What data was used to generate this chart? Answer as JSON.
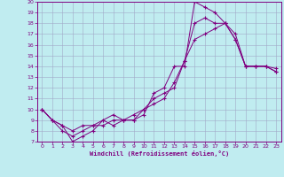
{
  "xlabel": "Windchill (Refroidissement éolien,°C)",
  "bg_color": "#c0ecf0",
  "line_color": "#800080",
  "grid_color": "#a0a8c8",
  "xlim": [
    -0.5,
    23.5
  ],
  "ylim": [
    7,
    20
  ],
  "xticks": [
    0,
    1,
    2,
    3,
    4,
    5,
    6,
    7,
    8,
    9,
    10,
    11,
    12,
    13,
    14,
    15,
    16,
    17,
    18,
    19,
    20,
    21,
    22,
    23
  ],
  "yticks": [
    7,
    8,
    9,
    10,
    11,
    12,
    13,
    14,
    15,
    16,
    17,
    18,
    19,
    20
  ],
  "line1_x": [
    0,
    1,
    2,
    3,
    4,
    5,
    6,
    7,
    8,
    9,
    10,
    11,
    12,
    13,
    14,
    15,
    16,
    17,
    18,
    19,
    20,
    21,
    22,
    23
  ],
  "line1_y": [
    10,
    9,
    8.5,
    7,
    7.5,
    8,
    9,
    9.5,
    9,
    9,
    9.5,
    11.5,
    12,
    14,
    14,
    20,
    19.5,
    19,
    18,
    17,
    14,
    14,
    14,
    13.5
  ],
  "line2_x": [
    0,
    1,
    2,
    3,
    4,
    5,
    6,
    7,
    8,
    9,
    10,
    11,
    12,
    13,
    14,
    15,
    16,
    17,
    18,
    19,
    20,
    21,
    22,
    23
  ],
  "line2_y": [
    10,
    9,
    8,
    7.5,
    8,
    8.5,
    8.5,
    9,
    9,
    9,
    10,
    11,
    11.5,
    12,
    14.5,
    16.5,
    17,
    17.5,
    18,
    16.5,
    14,
    14,
    14,
    13.8
  ],
  "line3_x": [
    0,
    1,
    2,
    3,
    4,
    5,
    6,
    7,
    8,
    9,
    10,
    11,
    12,
    13,
    14,
    15,
    16,
    17,
    18,
    19,
    20,
    21,
    22,
    23
  ],
  "line3_y": [
    10,
    9,
    8.5,
    8,
    8.5,
    8.5,
    9,
    8.5,
    9,
    9.5,
    10,
    10.5,
    11,
    12.5,
    14.5,
    18,
    18.5,
    18,
    18,
    16.5,
    14,
    14,
    14,
    13.5
  ]
}
